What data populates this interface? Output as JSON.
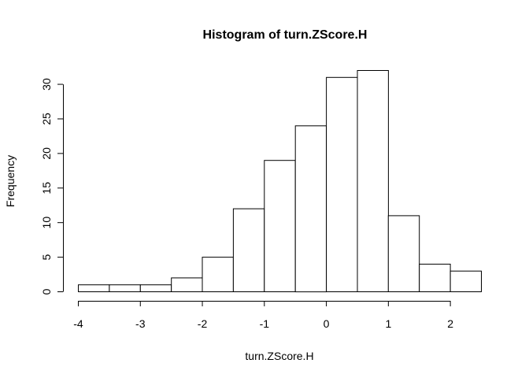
{
  "chart_data": {
    "type": "bar",
    "title": "Histogram of turn.ZScore.H",
    "xlabel": "turn.ZScore.H",
    "ylabel": "Frequency",
    "bin_edges": [
      -4,
      -3.5,
      -3,
      -2.5,
      -2,
      -1.5,
      -1,
      -0.5,
      0,
      0.5,
      1,
      1.5,
      2,
      2.5
    ],
    "values": [
      1,
      1,
      1,
      2,
      5,
      12,
      19,
      24,
      31,
      32,
      11,
      4,
      3
    ],
    "xlim": [
      -4,
      2.5
    ],
    "ylim": [
      0,
      32
    ],
    "x_ticks": [
      -4,
      -3,
      -2,
      -1,
      0,
      1,
      2
    ],
    "x_tick_labels": [
      "-4",
      "-3",
      "-2",
      "-1",
      "0",
      "1",
      "2"
    ],
    "y_ticks": [
      0,
      5,
      10,
      15,
      20,
      25,
      30
    ],
    "y_tick_labels": [
      "0",
      "5",
      "10",
      "15",
      "20",
      "25",
      "30"
    ],
    "grid": false,
    "legend": "none",
    "colors": {
      "bar_fill": "#ffffff",
      "bar_stroke": "#000000"
    }
  }
}
